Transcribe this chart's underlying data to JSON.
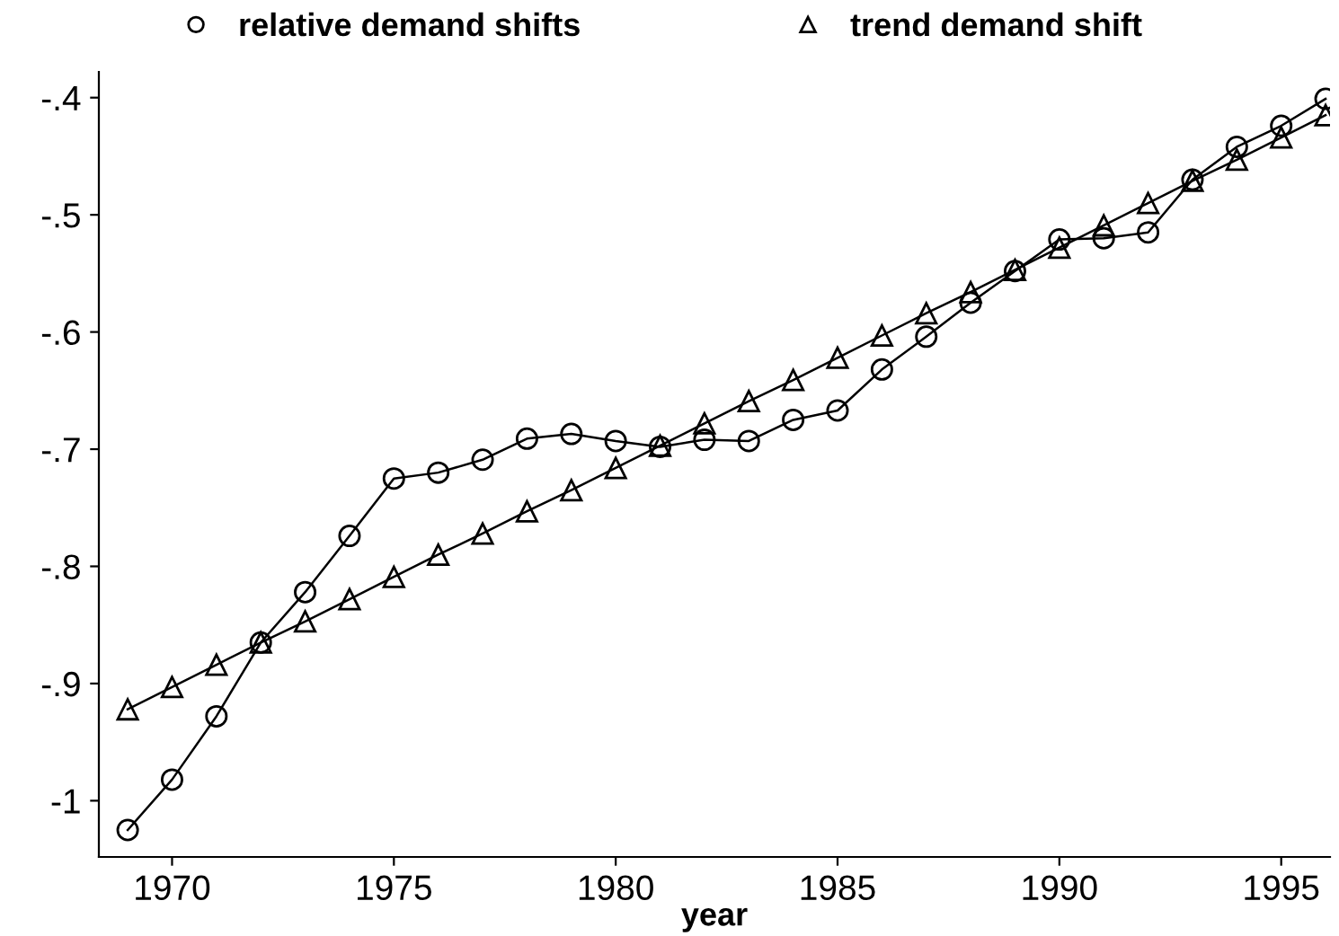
{
  "chart_data": {
    "type": "line",
    "xlabel": "year",
    "x": [
      1969,
      1970,
      1971,
      1972,
      1973,
      1974,
      1975,
      1976,
      1977,
      1978,
      1979,
      1980,
      1981,
      1982,
      1983,
      1984,
      1985,
      1986,
      1987,
      1988,
      1989,
      1990,
      1991,
      1992,
      1993,
      1994,
      1995,
      1996
    ],
    "series": [
      {
        "name": "relative demand shifts",
        "color": "#000000",
        "marker": "circle",
        "values": [
          -1.025,
          -0.982,
          -0.928,
          -0.865,
          -0.822,
          -0.774,
          -0.725,
          -0.72,
          -0.709,
          -0.691,
          -0.687,
          -0.693,
          -0.698,
          -0.692,
          -0.693,
          -0.675,
          -0.667,
          -0.632,
          -0.604,
          -0.575,
          -0.548,
          -0.521,
          -0.52,
          -0.515,
          -0.47,
          -0.442,
          -0.424,
          -0.401
        ]
      },
      {
        "name": "trend demand shift",
        "color": "#000000",
        "marker": "triangle",
        "values": [
          -0.922,
          -0.903,
          -0.884,
          -0.865,
          -0.847,
          -0.828,
          -0.809,
          -0.79,
          -0.772,
          -0.753,
          -0.735,
          -0.716,
          -0.697,
          -0.678,
          -0.659,
          -0.641,
          -0.622,
          -0.603,
          -0.584,
          -0.566,
          -0.547,
          -0.528,
          -0.509,
          -0.49,
          -0.471,
          -0.453,
          -0.434,
          -0.415
        ]
      }
    ],
    "xlim": [
      1968.35,
      1996.1
    ],
    "xticks": [
      1970,
      1975,
      1980,
      1985,
      1990,
      1995
    ],
    "ylim": [
      -1.048,
      -0.378
    ],
    "yticks": [
      {
        "value": -1,
        "label": "-1"
      },
      {
        "value": -0.9,
        "label": "-.9"
      },
      {
        "value": -0.8,
        "label": "-.8"
      },
      {
        "value": -0.7,
        "label": "-.7"
      },
      {
        "value": -0.6,
        "label": "-.6"
      },
      {
        "value": -0.5,
        "label": "-.5"
      },
      {
        "value": -0.4,
        "label": "-.4"
      }
    ],
    "grid": false,
    "legend": "top",
    "line_style": "solid"
  }
}
